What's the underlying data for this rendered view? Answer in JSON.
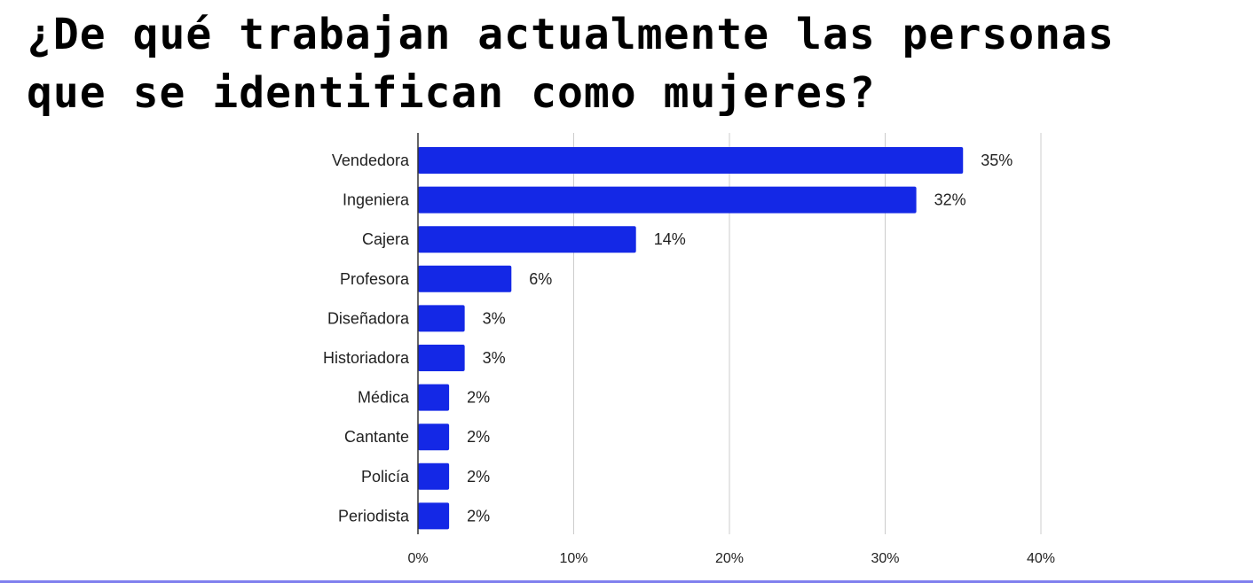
{
  "chart_data": {
    "type": "bar",
    "orientation": "horizontal",
    "title": "¿De qué trabajan actualmente las personas que se identifican como mujeres?",
    "categories": [
      "Vendedora",
      "Ingeniera",
      "Cajera",
      "Profesora",
      "Diseñadora",
      "Historiadora",
      "Médica",
      "Cantante",
      "Policía",
      "Periodista"
    ],
    "values": [
      35,
      32,
      14,
      6,
      3,
      3,
      2,
      2,
      2,
      2
    ],
    "value_labels": [
      "35%",
      "32%",
      "14%",
      "6%",
      "3%",
      "3%",
      "2%",
      "2%",
      "2%",
      "2%"
    ],
    "xlim": [
      0,
      40
    ],
    "x_ticks": [
      0,
      10,
      20,
      30,
      40
    ],
    "x_tick_labels": [
      "0%",
      "10%",
      "20%",
      "30%",
      "40%"
    ],
    "bar_color": "#1428e6",
    "grid": true,
    "legend": "none"
  }
}
